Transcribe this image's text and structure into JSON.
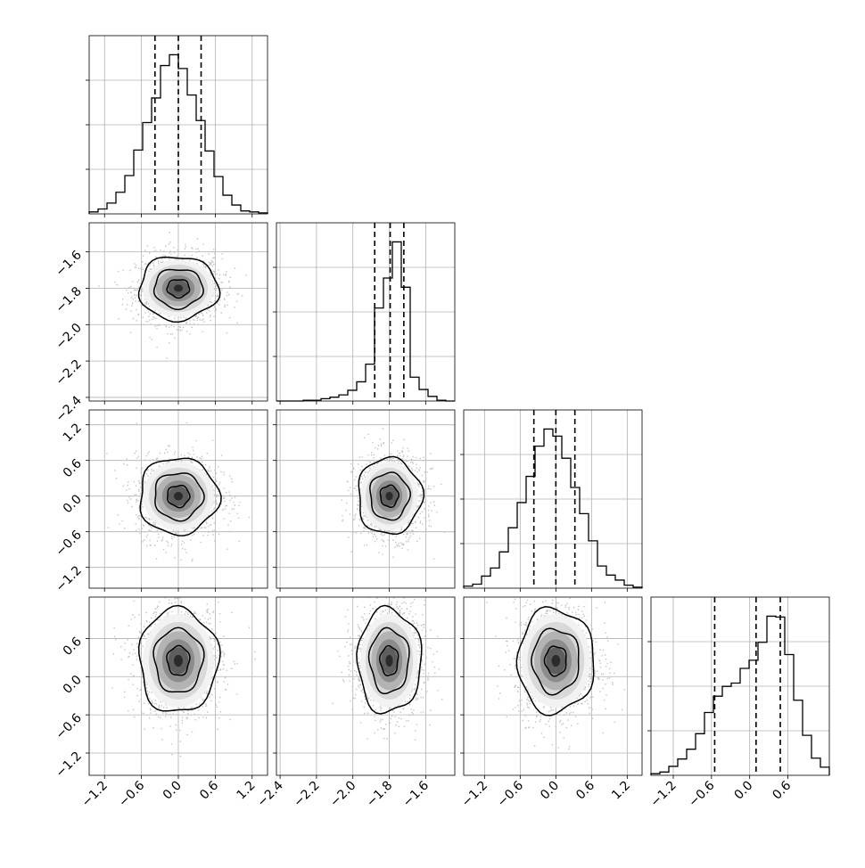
{
  "figure": {
    "type": "corner-plot",
    "background": "#ffffff",
    "hist_color": "#000000",
    "grid": true,
    "grid_color": "#b0b0b0",
    "contour_color": "#000000",
    "quantile_line_style": "dashed"
  },
  "chart_data": {
    "type": "heatmap",
    "kind": "corner",
    "parameters": [
      {
        "range": [
          -1.45,
          1.45
        ],
        "ticks": [
          -1.2,
          -0.6,
          0.0,
          0.6,
          1.2
        ],
        "tick_labels": [
          "−1.2",
          "−0.6",
          "0.0",
          "0.6",
          "1.2"
        ],
        "quantiles": [
          -0.38,
          0.0,
          0.37
        ],
        "hist_bins": [
          -1.45,
          -1.305,
          -1.16,
          -1.015,
          -0.87,
          -0.725,
          -0.58,
          -0.435,
          -0.29,
          -0.145,
          0.0,
          0.145,
          0.29,
          0.435,
          0.58,
          0.725,
          0.87,
          1.015,
          1.16,
          1.305,
          1.45
        ],
        "hist_counts": [
          2,
          5,
          11,
          22,
          39,
          65,
          93,
          118,
          151,
          162,
          148,
          121,
          95,
          64,
          38,
          19,
          9,
          3,
          2,
          1
        ]
      },
      {
        "range": [
          -2.42,
          -1.44
        ],
        "ticks": [
          -2.4,
          -2.2,
          -2.0,
          -1.8,
          -1.6
        ],
        "tick_labels": [
          "−2.4",
          "−2.2",
          "−2.0",
          "−1.8",
          "−1.6"
        ],
        "quantiles": [
          -1.88,
          -1.795,
          -1.72
        ],
        "hist_bins": [
          -2.42,
          -2.371,
          -2.322,
          -2.273,
          -2.224,
          -2.175,
          -2.126,
          -2.077,
          -2.028,
          -1.979,
          -1.93,
          -1.881,
          -1.832,
          -1.783,
          -1.734,
          -1.685,
          -1.636,
          -1.587,
          -1.538,
          -1.489,
          -1.44
        ],
        "hist_counts": [
          0,
          0,
          0,
          1,
          1,
          3,
          5,
          8,
          14,
          25,
          48,
          121,
          160,
          207,
          148,
          31,
          15,
          6,
          1,
          0
        ]
      },
      {
        "range": [
          -1.55,
          1.45
        ],
        "ticks": [
          -1.2,
          -0.6,
          0.0,
          0.6,
          1.2
        ],
        "tick_labels": [
          "−1.2",
          "−0.6",
          "0.0",
          "0.6",
          "1.2"
        ],
        "quantiles": [
          -0.37,
          0.0,
          0.32
        ],
        "hist_bins": [
          -1.55,
          -1.4,
          -1.25,
          -1.1,
          -0.95,
          -0.8,
          -0.65,
          -0.5,
          -0.35,
          -0.2,
          -0.05,
          0.1,
          0.25,
          0.4,
          0.55,
          0.7,
          0.85,
          1.0,
          1.15,
          1.3,
          1.45
        ],
        "hist_counts": [
          2,
          4,
          12,
          20,
          36,
          60,
          85,
          111,
          141,
          158,
          151,
          129,
          100,
          74,
          47,
          22,
          13,
          8,
          3,
          1
        ]
      },
      {
        "range": [
          -1.55,
          1.25
        ],
        "ticks": [
          -1.2,
          -0.6,
          0.0,
          0.6
        ],
        "tick_labels": [
          "−1.2",
          "−0.6",
          "0.0",
          "0.6"
        ],
        "quantiles": [
          -0.55,
          0.1,
          0.48
        ],
        "hist_bins": [
          -1.55,
          -1.41,
          -1.27,
          -1.13,
          -0.99,
          -0.85,
          -0.71,
          -0.57,
          -0.43,
          -0.29,
          -0.15,
          -0.01,
          0.13,
          0.27,
          0.41,
          0.55,
          0.69,
          0.83,
          0.97,
          1.11,
          1.25
        ],
        "hist_counts": [
          2,
          4,
          11,
          20,
          32,
          51,
          77,
          97,
          109,
          113,
          131,
          141,
          163,
          195,
          194,
          148,
          92,
          49,
          21,
          10
        ]
      }
    ],
    "pairs": [
      {
        "x": 0,
        "y": 1,
        "center": [
          0.0,
          -1.8
        ],
        "spread": [
          0.33,
          0.09
        ],
        "density_levels": [
          0.39,
          0.86,
          1.18
        ]
      },
      {
        "x": 0,
        "y": 2,
        "center": [
          0.0,
          0.0
        ],
        "spread": [
          0.33,
          0.33
        ],
        "density_levels": [
          0.39,
          0.86,
          1.18
        ]
      },
      {
        "x": 1,
        "y": 2,
        "center": [
          -1.8,
          0.0
        ],
        "spread": [
          0.09,
          0.33
        ],
        "density_levels": [
          0.39,
          0.86,
          1.18
        ]
      },
      {
        "x": 0,
        "y": 3,
        "center": [
          0.0,
          0.25
        ],
        "spread": [
          0.33,
          0.42
        ],
        "density_levels": [
          0.39,
          0.86,
          1.18
        ]
      },
      {
        "x": 1,
        "y": 3,
        "center": [
          -1.8,
          0.25
        ],
        "spread": [
          0.09,
          0.42
        ],
        "density_levels": [
          0.39,
          0.86,
          1.18
        ]
      },
      {
        "x": 2,
        "y": 3,
        "center": [
          0.0,
          0.25
        ],
        "spread": [
          0.33,
          0.42
        ],
        "density_levels": [
          0.39,
          0.86,
          1.18
        ]
      }
    ]
  }
}
